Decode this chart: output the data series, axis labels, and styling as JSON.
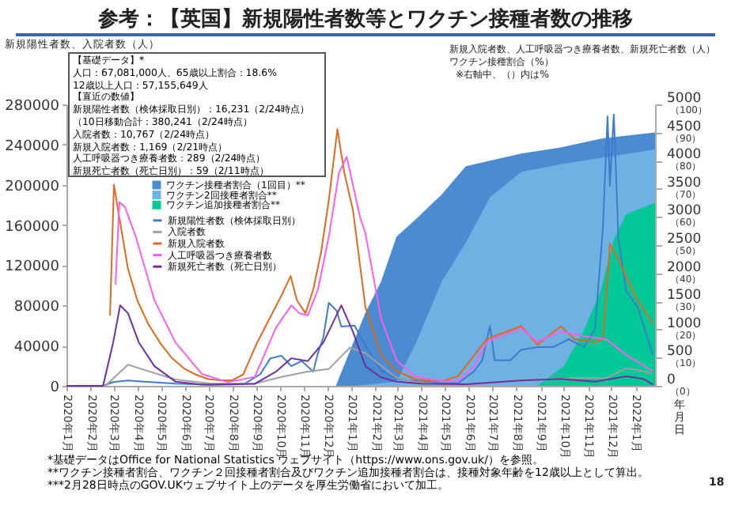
{
  "chart_data": {
    "type": "line",
    "title": "参考：【英国】新規陽性者数等とワクチン接種者数の推移",
    "xlabel": "年月日",
    "ylabel": "新規陽性者数、入院者数（人）",
    "y2label": "新規入院者数、人工呼吸器つき療養者数、新規死亡者数（人）",
    "y3label": "ワクチン接種割合（%）",
    "annotations": [
      "【基礎データ】*",
      "人口：67,081,000人、65歳以上割合：18.6%",
      "12歳以上人口：57,155,649人",
      "【直近の数値】",
      "新規陽性者数（検体採取日別）：16,231（2/24時点）",
      "（10日移動合計：380,241（2/24時点）",
      "入院者数：10,767（2/24時点）",
      "新規入院者数：1,169（2/21時点）",
      "人工呼吸器つき療養者数：289（2/24時点）",
      "新規死亡者数（死亡日別）：59（2/11時点）",
      "※右軸中、（）内は%",
      "*基礎データはOffice for National Statistics ウェブサイト（https://www.ons.gov.uk/）を参照。",
      "**ワクチン接種者割合、ワクチン２回接種者割合及びワクチン追加接種者割合は、接種対象年齢を12歳以上として算出。",
      "***2月28日時点のGOV.UKウェブサイト上のデータを厚生労働省において加工。",
      "18"
    ],
    "legend": "top left",
    "xlim": [
      "2020-01-01",
      "2022-01-26"
    ],
    "xticks": [
      {
        "value": "2020-01",
        "label": "2020年1月"
      },
      {
        "value": "2020-02",
        "label": "2020年2月"
      },
      {
        "value": "2020-03",
        "label": "2020年3月"
      },
      {
        "value": "2020-04",
        "label": "2020年4月"
      },
      {
        "value": "2020-05",
        "label": "2020年5月"
      },
      {
        "value": "2020-06",
        "label": "2020年6月"
      },
      {
        "value": "2020-07",
        "label": "2020年7月"
      },
      {
        "value": "2020-08",
        "label": "2020年8月"
      },
      {
        "value": "2020-09",
        "label": "2020年9月"
      },
      {
        "value": "2020-10",
        "label": "2020年10月"
      },
      {
        "value": "2020-11",
        "label": "2020年11月"
      },
      {
        "value": "2020-12",
        "label": "2020年12月"
      },
      {
        "value": "2021-01",
        "label": "2021年1月"
      },
      {
        "value": "2021-02",
        "label": "2021年2月"
      },
      {
        "value": "2021-03",
        "label": "2021年3月"
      },
      {
        "value": "2021-04",
        "label": "2021年4月"
      },
      {
        "value": "2021-05",
        "label": "2021年5月"
      },
      {
        "value": "2021-06",
        "label": "2021年6月"
      },
      {
        "value": "2021-07",
        "label": "2021年7月"
      },
      {
        "value": "2021-08",
        "label": "2021年8月"
      },
      {
        "value": "2021-09",
        "label": "2021年9月"
      },
      {
        "value": "2021-10",
        "label": "2021年10月"
      },
      {
        "value": "2021-11",
        "label": "2021年11月"
      },
      {
        "value": "2021-12",
        "label": "2021年12月"
      },
      {
        "value": "2022-01",
        "label": "2022年1月"
      }
    ],
    "ylim": [
      0,
      280000
    ],
    "yticks": [
      0,
      40000,
      80000,
      120000,
      160000,
      200000,
      240000,
      280000
    ],
    "y2lim": [
      0,
      5000
    ],
    "y2ticks": [
      0,
      500,
      1000,
      1500,
      2000,
      2500,
      3000,
      3500,
      4000,
      4500,
      5000
    ],
    "y3lim": [
      0,
      100
    ],
    "y3ticks": [
      {
        "value": 0,
        "label": "（0）"
      },
      {
        "value": 10,
        "label": "（10）"
      },
      {
        "value": 20,
        "label": "（20）"
      },
      {
        "value": 30,
        "label": "（30）"
      },
      {
        "value": 40,
        "label": "（40）"
      },
      {
        "value": 50,
        "label": "（50）"
      },
      {
        "value": 60,
        "label": "（60）"
      },
      {
        "value": 70,
        "label": "（70）"
      },
      {
        "value": 80,
        "label": "（80）"
      },
      {
        "value": 90,
        "label": "（90）"
      },
      {
        "value": 100,
        "label": "（100）"
      }
    ],
    "series": [
      {
        "name": "ワクチン接種者割合（1回目）**",
        "type": "area",
        "axis": "y3",
        "color": "#4a8bd2",
        "x": [
          "2020-12-12",
          "2021-01-19",
          "2021-02-08",
          "2021-02-28",
          "2021-03-24",
          "2021-04-27",
          "2021-05-28",
          "2021-06-28",
          "2021-08-07",
          "2021-09-27",
          "2021-11-17",
          "2022-01-26"
        ],
        "values": [
          0,
          26,
          37,
          53,
          59,
          68,
          78,
          80,
          82.5,
          84.7,
          87.8,
          90
        ]
      },
      {
        "name": "ワクチン2回接種者割合**",
        "type": "area",
        "axis": "y3",
        "color": "#6eb1e3",
        "x": [
          "2021-01-05",
          "2021-02-28",
          "2021-03-24",
          "2021-04-27",
          "2021-05-28",
          "2021-06-28",
          "2021-08-07",
          "2021-09-27",
          "2021-11-17",
          "2022-01-26"
        ],
        "values": [
          0,
          1.5,
          14.7,
          37,
          51,
          67,
          76,
          78.7,
          81,
          84
        ]
      },
      {
        "name": "ワクチン追加接種者割合**",
        "type": "area",
        "axis": "y3",
        "color": "#00c896",
        "x": [
          "2021-08-28",
          "2021-10-01",
          "2021-10-27",
          "2021-11-17",
          "2021-12-04",
          "2021-12-20",
          "2022-01-26"
        ],
        "values": [
          0,
          7,
          20,
          33.5,
          52,
          61,
          65
        ]
      },
      {
        "name": "新規陽性者数（検体採取日別）",
        "axis": "y",
        "color": "#3d7cc9",
        "x": [
          "2020-01-01",
          "2020-02-17",
          "2020-03-01",
          "2020-03-20",
          "2020-04-10",
          "2020-05-20",
          "2020-07-06",
          "2020-08-16",
          "2020-09-06",
          "2020-09-19",
          "2020-10-03",
          "2020-10-16",
          "2020-10-29",
          "2020-11-13",
          "2020-11-19",
          "2020-11-26",
          "2020-12-03",
          "2020-12-13",
          "2020-12-19",
          "2021-01-05",
          "2021-01-19",
          "2021-02-08",
          "2021-02-28",
          "2021-03-24",
          "2021-04-27",
          "2021-05-18",
          "2021-06-08",
          "2021-06-18",
          "2021-06-28",
          "2021-07-04",
          "2021-07-24",
          "2021-08-07",
          "2021-08-28",
          "2021-09-17",
          "2021-10-07",
          "2021-10-27",
          "2021-11-10",
          "2021-11-20",
          "2021-11-26",
          "2021-11-29",
          "2021-12-04",
          "2021-12-10",
          "2021-12-20",
          "2022-01-04",
          "2022-01-23"
        ],
        "values": [
          0,
          0,
          3700,
          5300,
          4200,
          2100,
          1000,
          1600,
          11600,
          27400,
          30000,
          19500,
          24700,
          14200,
          32600,
          48400,
          82600,
          74700,
          59000,
          60000,
          40000,
          15000,
          7000,
          5000,
          2500,
          2500,
          14800,
          25300,
          59600,
          25300,
          25300,
          35800,
          38500,
          38500,
          46400,
          38500,
          57000,
          157000,
          268000,
          199000,
          270000,
          146000,
          94000,
          78000,
          30600
        ]
      },
      {
        "name": "入院者数",
        "axis": "y",
        "color": "#a0a0a0",
        "x": [
          "2020-01-01",
          "2020-02-20",
          "2020-03-07",
          "2020-03-20",
          "2020-04-10",
          "2020-05-20",
          "2020-07-06",
          "2020-08-30",
          "2020-10-03",
          "2020-11-06",
          "2020-12-03",
          "2020-12-30",
          "2021-01-19",
          "2021-02-08",
          "2021-02-28",
          "2021-03-24",
          "2021-04-27",
          "2021-05-18",
          "2021-06-08",
          "2021-07-11",
          "2021-08-07",
          "2021-09-27",
          "2021-10-27",
          "2021-11-24",
          "2021-12-20",
          "2022-01-04",
          "2022-01-23"
        ],
        "values": [
          0,
          0,
          11600,
          21000,
          15800,
          6300,
          2100,
          2100,
          8900,
          14200,
          16800,
          37900,
          32600,
          20000,
          8000,
          4000,
          1500,
          1000,
          1200,
          4000,
          6000,
          7000,
          8000,
          7500,
          17400,
          15800,
          12100
        ]
      },
      {
        "name": "新規入院者数",
        "axis": "y2",
        "color": "#e06a1b",
        "x": [
          "2020-02-26",
          "2020-03-02",
          "2020-03-10",
          "2020-03-20",
          "2020-04-01",
          "2020-04-15",
          "2020-05-01",
          "2020-05-15",
          "2020-06-01",
          "2020-06-15",
          "2020-07-01",
          "2020-07-15",
          "2020-08-01",
          "2020-08-15",
          "2020-09-02",
          "2020-10-03",
          "2020-10-15",
          "2020-10-23",
          "2020-11-03",
          "2020-11-13",
          "2020-11-23",
          "2020-12-03",
          "2020-12-14",
          "2020-12-23",
          "2021-01-03",
          "2021-01-19",
          "2021-02-08",
          "2021-02-28",
          "2021-03-24",
          "2021-04-27",
          "2021-05-18",
          "2021-06-08",
          "2021-06-24",
          "2021-07-11",
          "2021-08-07",
          "2021-08-28",
          "2021-09-27",
          "2021-10-14",
          "2021-11-10",
          "2021-11-20",
          "2021-11-29",
          "2021-12-10",
          "2022-01-01",
          "2022-01-23"
        ],
        "values": [
          1250,
          3570,
          2900,
          2080,
          1520,
          1100,
          750,
          500,
          300,
          200,
          120,
          100,
          100,
          200,
          770,
          1600,
          1950,
          1520,
          1290,
          1710,
          2370,
          3300,
          4560,
          3780,
          3120,
          1400,
          550,
          260,
          120,
          80,
          170,
          550,
          830,
          920,
          1060,
          730,
          1060,
          830,
          780,
          830,
          2520,
          2240,
          1580,
          1110
        ]
      },
      {
        "name": "人工呼吸器つき療養者数",
        "axis": "y2",
        "color": "#ff5cf0",
        "x": [
          "2020-03-04",
          "2020-03-09",
          "2020-03-16",
          "2020-03-30",
          "2020-04-23",
          "2020-05-20",
          "2020-06-23",
          "2020-07-26",
          "2020-08-30",
          "2020-09-26",
          "2020-10-16",
          "2020-10-26",
          "2020-11-06",
          "2020-11-19",
          "2020-12-03",
          "2020-12-16",
          "2020-12-26",
          "2021-01-12",
          "2021-01-19",
          "2021-02-08",
          "2021-02-28",
          "2021-03-24",
          "2021-04-27",
          "2021-05-18",
          "2021-06-08",
          "2021-06-24",
          "2021-07-11",
          "2021-08-07",
          "2021-08-28",
          "2021-09-27",
          "2021-10-27",
          "2021-11-24",
          "2021-12-20",
          "2022-01-23"
        ],
        "values": [
          1800,
          3260,
          3180,
          2650,
          1520,
          770,
          210,
          65,
          160,
          1030,
          1430,
          1290,
          1250,
          1710,
          2650,
          3780,
          4070,
          3000,
          2710,
          1200,
          450,
          170,
          80,
          80,
          360,
          780,
          880,
          1020,
          780,
          970,
          880,
          830,
          550,
          260
        ]
      },
      {
        "name": "新規死亡者数（死亡日別）",
        "axis": "y2",
        "color": "#7030a0",
        "x": [
          "2020-01-01",
          "2020-02-17",
          "2020-03-01",
          "2020-03-10",
          "2020-03-20",
          "2020-04-03",
          "2020-04-23",
          "2020-05-20",
          "2020-06-23",
          "2020-08-30",
          "2020-09-26",
          "2020-10-16",
          "2020-11-06",
          "2020-11-26",
          "2020-12-19",
          "2021-01-03",
          "2021-01-19",
          "2021-02-08",
          "2021-02-28",
          "2021-04-01",
          "2021-05-28",
          "2021-08-07",
          "2021-09-27",
          "2021-11-10",
          "2021-12-20",
          "2022-01-11",
          "2022-01-23"
        ],
        "values": [
          0,
          0,
          770,
          1430,
          1290,
          770,
          350,
          75,
          20,
          36,
          250,
          490,
          440,
          770,
          1430,
          960,
          350,
          150,
          75,
          40,
          28,
          94,
          122,
          75,
          170,
          122,
          28
        ]
      }
    ]
  }
}
